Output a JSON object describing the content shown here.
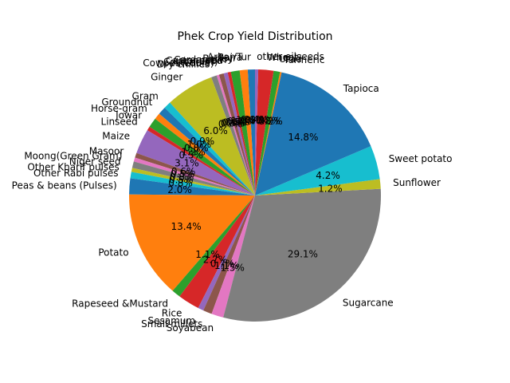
{
  "chart_data": {
    "type": "pie",
    "title": "Phek Crop Yield Distribution",
    "start_angle_deg": 90,
    "direction": "counterclockwise",
    "colors": [
      "#1f77b4",
      "#ff7f0e",
      "#2ca02c",
      "#d62728",
      "#9467bd",
      "#8c564b",
      "#e377c2",
      "#7f7f7f",
      "#bcbd22",
      "#17becf"
    ],
    "slices": [
      {
        "label": "Arhar/Tur",
        "value": 0.9,
        "pct_label": "0.9%"
      },
      {
        "label": "Bajra",
        "value": 1.0,
        "pct_label": "1.0%"
      },
      {
        "label": "Barley",
        "value": 1.1,
        "pct_label": "1.1%"
      },
      {
        "label": "Cardamom",
        "value": 0.4,
        "pct_label": "0.4%"
      },
      {
        "label": "Castor seed",
        "value": 0.5,
        "pct_label": "0.5%"
      },
      {
        "label": "Cotton(lint)",
        "value": 0.6,
        "pct_label": "0.6%"
      },
      {
        "label": "Cowpea(Lobia)",
        "value": 0.3,
        "pct_label": "0.3%"
      },
      {
        "label": "Dry chillies",
        "value": 0.7,
        "pct_label": "0.7%"
      },
      {
        "label": "Ginger",
        "value": 6.0,
        "pct_label": "6.0%"
      },
      {
        "label": "Gram",
        "value": 0.9,
        "pct_label": "0.9%"
      },
      {
        "label": "Groundnut",
        "value": 1.0,
        "pct_label": "1.0%"
      },
      {
        "label": "Horse-gram",
        "value": 0.8,
        "pct_label": "0.8%"
      },
      {
        "label": "Jowar",
        "value": 1.2,
        "pct_label": "1.2%"
      },
      {
        "label": "Linseed",
        "value": 0.5,
        "pct_label": "0.5%"
      },
      {
        "label": "Maize",
        "value": 3.1,
        "pct_label": "3.1%"
      },
      {
        "label": "Masoor",
        "value": 0.6,
        "pct_label": "0.6%"
      },
      {
        "label": "Moong(Green Gram)",
        "value": 0.5,
        "pct_label": "0.5%"
      },
      {
        "label": "Niger seed",
        "value": 0.8,
        "pct_label": "0.8%"
      },
      {
        "label": "Other Kharif pulses",
        "value": 0.5,
        "pct_label": "0.5%"
      },
      {
        "label": "Other Rabi pulses",
        "value": 0.8,
        "pct_label": "0.8%"
      },
      {
        "label": "Peas & beans (Pulses)",
        "value": 2.0,
        "pct_label": "2.0%"
      },
      {
        "label": "Potato",
        "value": 13.4,
        "pct_label": "13.4%"
      },
      {
        "label": "Rapeseed &Mustard",
        "value": 1.1,
        "pct_label": "1.1%"
      },
      {
        "label": "Rice",
        "value": 2.7,
        "pct_label": "2.7%"
      },
      {
        "label": "Sesamum",
        "value": 0.7,
        "pct_label": "0.7%"
      },
      {
        "label": "Small millets",
        "value": 1.1,
        "pct_label": "1.1%"
      },
      {
        "label": "Soyabean",
        "value": 1.5,
        "pct_label": "1.5%"
      },
      {
        "label": "Sugarcane",
        "value": 29.1,
        "pct_label": "29.1%"
      },
      {
        "label": "Sunflower",
        "value": 1.2,
        "pct_label": "1.2%"
      },
      {
        "label": "Sweet potato",
        "value": 4.2,
        "pct_label": "4.2%"
      },
      {
        "label": "Tapioca",
        "value": 14.8,
        "pct_label": "14.8%"
      },
      {
        "label": "Turmeric",
        "value": 0.2,
        "pct_label": "0.2%"
      },
      {
        "label": "Urad",
        "value": 0.8,
        "pct_label": "0.8%"
      },
      {
        "label": "Wheat",
        "value": 1.9,
        "pct_label": "1.9%"
      },
      {
        "label": "other oilseeds",
        "value": 0.4,
        "pct_label": "0.4%"
      }
    ]
  }
}
